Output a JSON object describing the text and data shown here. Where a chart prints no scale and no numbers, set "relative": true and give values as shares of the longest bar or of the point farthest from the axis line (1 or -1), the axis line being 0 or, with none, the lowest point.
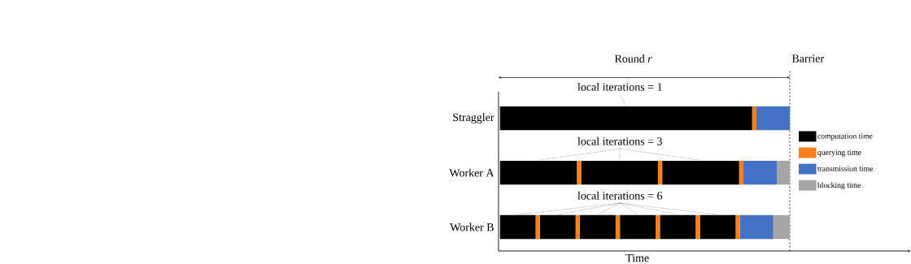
{
  "chart_data": {
    "type": "bar",
    "orientation": "horizontal",
    "stacked": true,
    "relative": true,
    "xlabel": "Time",
    "legend": "right",
    "categories": [
      "Straggler",
      "Worker A",
      "Worker B"
    ],
    "series": [
      {
        "name": "computation time",
        "color": "#000000",
        "values": [
          0.87,
          0.265,
          0.123
        ]
      },
      {
        "name": "querying time",
        "color": "#fd7f1c",
        "values": [
          0.015,
          0.015,
          0.015
        ]
      },
      {
        "color": "#000000",
        "values": [
          null,
          0.265,
          0.123
        ]
      },
      {
        "color": "#fd7f1c",
        "values": [
          null,
          0.015,
          0.015
        ]
      },
      {
        "color": "#000000",
        "values": [
          null,
          0.265,
          0.123
        ]
      },
      {
        "color": "#fd7f1c",
        "values": [
          null,
          0.015,
          0.015
        ]
      },
      {
        "color": "#000000",
        "values": [
          null,
          null,
          0.123
        ]
      },
      {
        "color": "#fd7f1c",
        "values": [
          null,
          null,
          0.015
        ]
      },
      {
        "color": "#000000",
        "values": [
          null,
          null,
          0.123
        ]
      },
      {
        "color": "#fd7f1c",
        "values": [
          null,
          null,
          0.015
        ]
      },
      {
        "color": "#000000",
        "values": [
          null,
          null,
          0.123
        ]
      },
      {
        "color": "#fd7f1c",
        "values": [
          null,
          null,
          0.015
        ]
      },
      {
        "name": "transmission time",
        "color": "#4472c4",
        "values": [
          0.115,
          0.115,
          0.115
        ]
      },
      {
        "name": "blocking time",
        "color": "#a5a5a5",
        "values": [
          null,
          0.045,
          0.057
        ]
      }
    ],
    "ref_lines": [
      {
        "axis": "x",
        "value": 1,
        "label": "Barrier",
        "line_style": "dashed"
      }
    ],
    "annotations": [
      "Round *r*",
      "local iterations = 1",
      "local iterations = 3",
      "local iterations = 6"
    ]
  }
}
